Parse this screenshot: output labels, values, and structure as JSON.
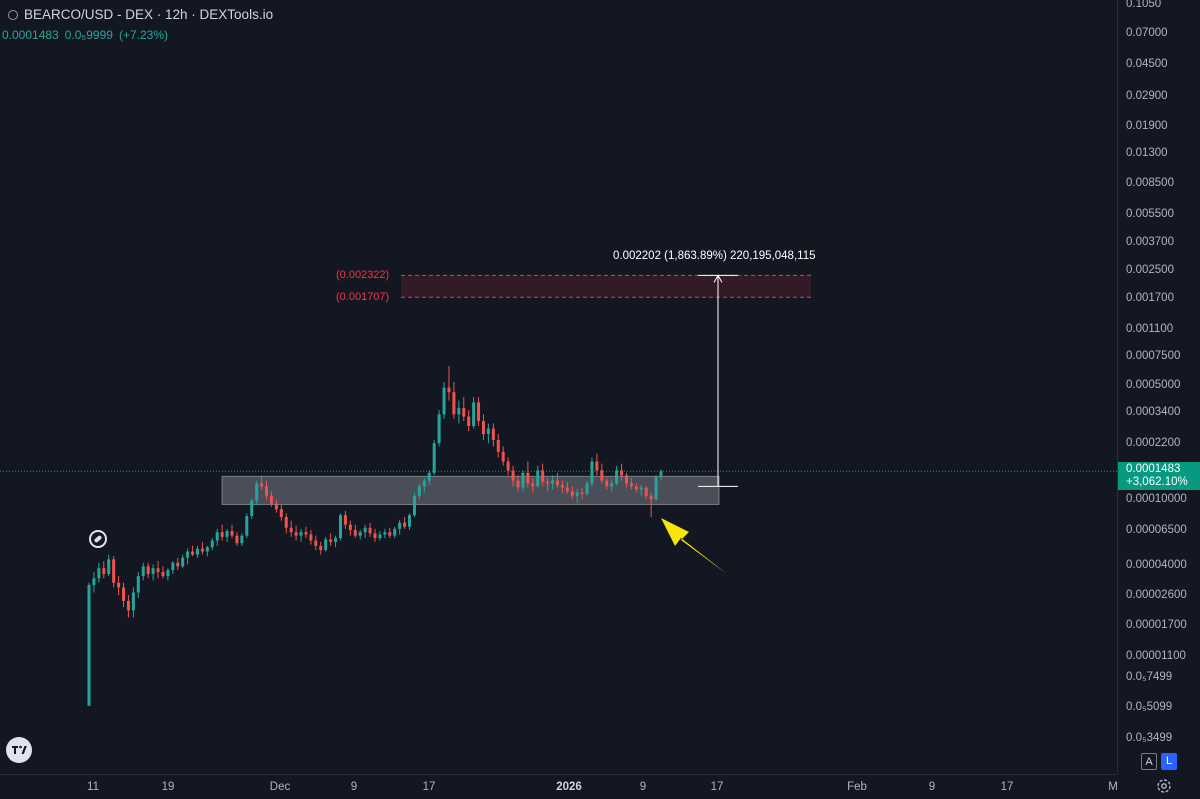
{
  "header": {
    "title": "BEARCO/USD - DEX · 12h · DEXTools.io",
    "price": "0.0001483",
    "change_abs": "0.0₅9999",
    "change_pct": "(+7.23%)"
  },
  "price_axis": {
    "ticks": [
      "0.1050",
      "0.07000",
      "0.04500",
      "0.02900",
      "0.01900",
      "0.01300",
      "0.008500",
      "0.005500",
      "0.003700",
      "0.002500",
      "0.001700",
      "0.001100",
      "0.0007500",
      "0.0005000",
      "0.0003400",
      "0.0002200",
      "0.00010000",
      "0.00006500",
      "0.00004000",
      "0.00002600",
      "0.00001700",
      "0.00001100",
      "0.0₅7499",
      "0.0₅5099",
      "0.0₅3499"
    ],
    "last_price": "0.0001483",
    "last_change": "+3,062.10%"
  },
  "time_axis": {
    "ticks": [
      {
        "label": "11",
        "bold": false
      },
      {
        "label": "19",
        "bold": false
      },
      {
        "label": "Dec",
        "bold": false
      },
      {
        "label": "9",
        "bold": false
      },
      {
        "label": "17",
        "bold": false
      },
      {
        "label": "2026",
        "bold": true
      },
      {
        "label": "9",
        "bold": false
      },
      {
        "label": "17",
        "bold": false
      },
      {
        "label": "Feb",
        "bold": false
      },
      {
        "label": "9",
        "bold": false
      },
      {
        "label": "17",
        "bold": false
      },
      {
        "label": "M",
        "bold": false
      }
    ]
  },
  "annotations": {
    "measure": "0.002202 (1,863.89%) 220,195,048,115",
    "zone_top": "(0.002322)",
    "zone_bottom": "(0.001707)"
  },
  "controls": {
    "auto_label": "A",
    "log_label": "L"
  },
  "chart_data": {
    "type": "candlestick",
    "symbol": "BEARCO/USD",
    "interval": "12h",
    "y_scale": "log",
    "ylim": [
      3.4e-06,
      0.105
    ],
    "last_price": 0.0001483,
    "colors": {
      "up": "#26a69a",
      "down": "#ef5350"
    },
    "candles": [
      [
        5.5e-06,
        3.1e-05,
        5.5e-06,
        3e-05
      ],
      [
        3e-05,
        3.6e-05,
        2.7e-05,
        3.3e-05
      ],
      [
        3.3e-05,
        4.1e-05,
        3.1e-05,
        3.8e-05
      ],
      [
        3.8e-05,
        4.2e-05,
        3.3e-05,
        3.5e-05
      ],
      [
        3.5e-05,
        4.6e-05,
        3.4e-05,
        4.3e-05
      ],
      [
        4.3e-05,
        4.5e-05,
        2.9e-05,
        3.1e-05
      ],
      [
        3.1e-05,
        3.4e-05,
        2.6e-05,
        2.9e-05
      ],
      [
        2.9e-05,
        3.1e-05,
        2.2e-05,
        2.4e-05
      ],
      [
        2.4e-05,
        2.6e-05,
        1.9e-05,
        2.1e-05
      ],
      [
        2.1e-05,
        2.9e-05,
        1.9e-05,
        2.7e-05
      ],
      [
        2.7e-05,
        3.6e-05,
        2.5e-05,
        3.4e-05
      ],
      [
        3.4e-05,
        4.1e-05,
        3.2e-05,
        3.9e-05
      ],
      [
        3.9e-05,
        4.1e-05,
        3.3e-05,
        3.5e-05
      ],
      [
        3.5e-05,
        4e-05,
        3.2e-05,
        3.8e-05
      ],
      [
        3.8e-05,
        4.2e-05,
        3.3e-05,
        3.6e-05
      ],
      [
        3.6e-05,
        3.9e-05,
        3.3e-05,
        3.4e-05
      ],
      [
        3.4e-05,
        3.8e-05,
        3.2e-05,
        3.7e-05
      ],
      [
        3.7e-05,
        4.2e-05,
        3.5e-05,
        4.1e-05
      ],
      [
        4.1e-05,
        4.4e-05,
        3.7e-05,
        3.9e-05
      ],
      [
        3.9e-05,
        4.6e-05,
        3.8e-05,
        4.4e-05
      ],
      [
        4.4e-05,
        5e-05,
        4e-05,
        4.8e-05
      ],
      [
        4.8e-05,
        5.2e-05,
        4.5e-05,
        4.6e-05
      ],
      [
        4.6e-05,
        5.2e-05,
        4.4e-05,
        5e-05
      ],
      [
        5e-05,
        5.5e-05,
        4.6e-05,
        4.8e-05
      ],
      [
        4.8e-05,
        5.2e-05,
        4.5e-05,
        5.1e-05
      ],
      [
        5.1e-05,
        5.8e-05,
        4.9e-05,
        5.6e-05
      ],
      [
        5.6e-05,
        6.6e-05,
        5.2e-05,
        6.3e-05
      ],
      [
        6.3e-05,
        7e-05,
        5.6e-05,
        5.9e-05
      ],
      [
        5.9e-05,
        6.6e-05,
        5.5e-05,
        6.4e-05
      ],
      [
        6.4e-05,
        7e-05,
        5.8e-05,
        6e-05
      ],
      [
        6e-05,
        6.3e-05,
        5.2e-05,
        5.4e-05
      ],
      [
        5.4e-05,
        6.2e-05,
        5.2e-05,
        6e-05
      ],
      [
        6e-05,
        8.2e-05,
        5.8e-05,
        7.9e-05
      ],
      [
        7.9e-05,
        0.000101,
        7.6e-05,
        9.8e-05
      ],
      [
        9.8e-05,
        0.00013,
        9.2e-05,
        0.000125
      ],
      [
        0.000125,
        0.00014,
        0.000115,
        0.00012
      ],
      [
        0.00012,
        0.00013,
        0.0001,
        0.000105
      ],
      [
        0.000105,
        0.000112,
        9e-05,
        9.4e-05
      ],
      [
        9.4e-05,
        9.9e-05,
        8.3e-05,
        8.7e-05
      ],
      [
        8.7e-05,
        9.4e-05,
        7.4e-05,
        7.8e-05
      ],
      [
        7.8e-05,
        8.2e-05,
        6.2e-05,
        6.7e-05
      ],
      [
        6.7e-05,
        7.4e-05,
        5.9e-05,
        6.3e-05
      ],
      [
        6.3e-05,
        6.9e-05,
        5.6e-05,
        6e-05
      ],
      [
        6e-05,
        6.6e-05,
        5.5e-05,
        6.3e-05
      ],
      [
        6.3e-05,
        6.8e-05,
        5.8e-05,
        6.1e-05
      ],
      [
        6.1e-05,
        6.5e-05,
        5.3e-05,
        5.6e-05
      ],
      [
        5.6e-05,
        6e-05,
        4.9e-05,
        5.2e-05
      ],
      [
        5.2e-05,
        5.5e-05,
        4.6e-05,
        4.9e-05
      ],
      [
        4.9e-05,
        5.9e-05,
        4.8e-05,
        5.7e-05
      ],
      [
        5.7e-05,
        6.2e-05,
        5.2e-05,
        5.5e-05
      ],
      [
        5.5e-05,
        6e-05,
        5.1e-05,
        5.8e-05
      ],
      [
        5.8e-05,
        8.2e-05,
        5.6e-05,
        8e-05
      ],
      [
        8e-05,
        8.5e-05,
        6.6e-05,
        7e-05
      ],
      [
        7e-05,
        7.4e-05,
        6e-05,
        6.5e-05
      ],
      [
        6.5e-05,
        7e-05,
        5.8e-05,
        6e-05
      ],
      [
        6e-05,
        6.5e-05,
        5.7e-05,
        6.3e-05
      ],
      [
        6.3e-05,
        7e-05,
        5.8e-05,
        6.7e-05
      ],
      [
        6.7e-05,
        7.2e-05,
        5.9e-05,
        6.2e-05
      ],
      [
        6.2e-05,
        6.6e-05,
        5.5e-05,
        5.8e-05
      ],
      [
        5.8e-05,
        6.4e-05,
        5.6e-05,
        6.1e-05
      ],
      [
        6.1e-05,
        6.6e-05,
        5.8e-05,
        6.3e-05
      ],
      [
        6.3e-05,
        6.7e-05,
        5.8e-05,
        6e-05
      ],
      [
        6e-05,
        6.8e-05,
        5.8e-05,
        6.6e-05
      ],
      [
        6.6e-05,
        7.5e-05,
        6.1e-05,
        7.2e-05
      ],
      [
        7.2e-05,
        7.8e-05,
        6.6e-05,
        6.8e-05
      ],
      [
        6.8e-05,
        8.2e-05,
        6.5e-05,
        8e-05
      ],
      [
        8e-05,
        0.00011,
        7.8e-05,
        0.000105
      ],
      [
        0.000105,
        0.000125,
        0.0001,
        0.00012
      ],
      [
        0.00012,
        0.000135,
        0.00011,
        0.00013
      ],
      [
        0.00013,
        0.00015,
        0.000122,
        0.000145
      ],
      [
        0.000145,
        0.00023,
        0.00014,
        0.00022
      ],
      [
        0.00022,
        0.00035,
        0.00021,
        0.00033
      ],
      [
        0.00033,
        0.00052,
        0.00031,
        0.00048
      ],
      [
        0.00048,
        0.00065,
        0.0004,
        0.00045
      ],
      [
        0.00045,
        0.00052,
        0.00031,
        0.00033
      ],
      [
        0.00033,
        0.0004,
        0.00029,
        0.00036
      ],
      [
        0.00036,
        0.00042,
        0.0003,
        0.00032
      ],
      [
        0.00032,
        0.00035,
        0.00026,
        0.00028
      ],
      [
        0.00028,
        0.00042,
        0.00027,
        0.00039
      ],
      [
        0.00039,
        0.00042,
        0.00028,
        0.0003
      ],
      [
        0.0003,
        0.00033,
        0.00023,
        0.00025
      ],
      [
        0.00025,
        0.00029,
        0.00022,
        0.00027
      ],
      [
        0.00027,
        0.00029,
        0.00021,
        0.00023
      ],
      [
        0.00023,
        0.00025,
        0.00018,
        0.000195
      ],
      [
        0.000195,
        0.00021,
        0.00016,
        0.00017
      ],
      [
        0.00017,
        0.00018,
        0.00014,
        0.00015
      ],
      [
        0.00015,
        0.00016,
        0.00012,
        0.00013
      ],
      [
        0.00013,
        0.00014,
        0.000112,
        0.000118
      ],
      [
        0.000118,
        0.00015,
        0.000112,
        0.000145
      ],
      [
        0.000145,
        0.00017,
        0.000118,
        0.000125
      ],
      [
        0.000125,
        0.000135,
        0.00011,
        0.00012
      ],
      [
        0.00012,
        0.00016,
        0.000118,
        0.00015
      ],
      [
        0.00015,
        0.000165,
        0.00012,
        0.000128
      ],
      [
        0.000128,
        0.000135,
        0.000112,
        0.000125
      ],
      [
        0.000125,
        0.00014,
        0.000115,
        0.00013
      ],
      [
        0.00013,
        0.000145,
        0.000118,
        0.000122
      ],
      [
        0.000122,
        0.00013,
        0.00011,
        0.000118
      ],
      [
        0.000118,
        0.000128,
        0.000108,
        0.000112
      ],
      [
        0.000112,
        0.00012,
        0.0001,
        0.000105
      ],
      [
        0.000105,
        0.000115,
        9.5e-05,
        0.00011
      ],
      [
        0.00011,
        0.000118,
        0.0001,
        0.000108
      ],
      [
        0.000108,
        0.00013,
        0.000105,
        0.000125
      ],
      [
        0.000125,
        0.00018,
        0.00012,
        0.00017
      ],
      [
        0.00017,
        0.00019,
        0.00014,
        0.00015
      ],
      [
        0.00015,
        0.000165,
        0.000125,
        0.00013
      ],
      [
        0.00013,
        0.000135,
        0.000115,
        0.00012
      ],
      [
        0.00012,
        0.000132,
        0.000112,
        0.000125
      ],
      [
        0.000125,
        0.00016,
        0.000122,
        0.00015
      ],
      [
        0.00015,
        0.000165,
        0.00013,
        0.00014
      ],
      [
        0.00014,
        0.000145,
        0.000118,
        0.000125
      ],
      [
        0.000125,
        0.000135,
        0.000115,
        0.00012
      ],
      [
        0.00012,
        0.000125,
        0.00011,
        0.000115
      ],
      [
        0.000115,
        0.000122,
        0.000105,
        0.000118
      ],
      [
        0.000118,
        0.00012,
        0.0001,
        0.000105
      ],
      [
        0.000105,
        0.00011,
        7.8e-05,
        0.0001
      ],
      [
        0.0001,
        0.00014,
        9.8e-05,
        0.000138
      ],
      [
        0.000138,
        0.000152,
        0.00013,
        0.000148
      ]
    ],
    "support_zone": {
      "top": 0.000138,
      "bottom": 9.3e-05
    },
    "target_zone": {
      "top": 0.002322,
      "bottom": 0.001707
    },
    "measure": {
      "from": 0.00012,
      "to": 0.002322,
      "change": 0.002202,
      "percent": "1,863.89%"
    }
  }
}
